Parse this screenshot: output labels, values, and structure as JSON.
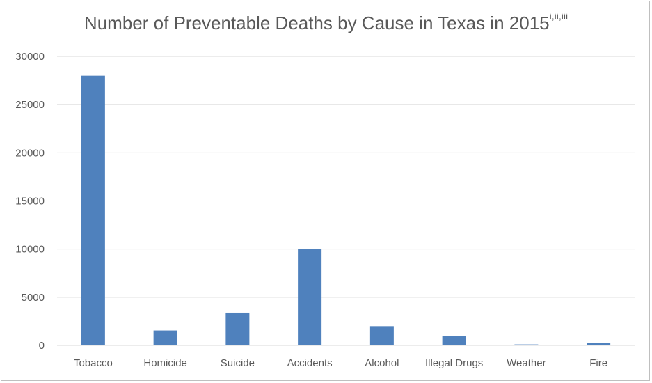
{
  "chart_data": {
    "type": "bar",
    "title": "Number of Preventable Deaths by Cause in Texas in 2015",
    "title_superscript": "i,ii,iii",
    "xlabel": "",
    "ylabel": "",
    "categories": [
      "Tobacco",
      "Homicide",
      "Suicide",
      "Accidents",
      "Alcohol",
      "Illegal Drugs",
      "Weather",
      "Fire"
    ],
    "values": [
      28000,
      1550,
      3400,
      10000,
      2000,
      1000,
      100,
      250
    ],
    "ylim": [
      0,
      30000
    ],
    "yticks": [
      "0",
      "5000",
      "10000",
      "15000",
      "20000",
      "25000",
      "30000"
    ],
    "grid": true,
    "legend": "none",
    "bar_color": "#4f81bd",
    "grid_color": "#d9d9d9"
  }
}
